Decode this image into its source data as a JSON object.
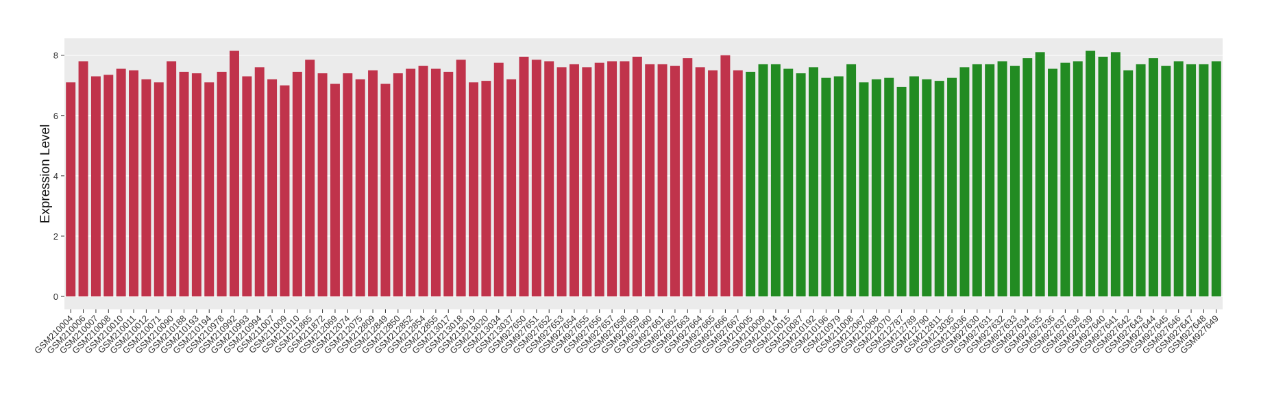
{
  "chart_data": {
    "type": "bar",
    "y_label": "Expression Level",
    "categories": [
      "GSM210004",
      "GSM210006",
      "GSM210007",
      "GSM210008",
      "GSM210010",
      "GSM210011",
      "GSM210012",
      "GSM210071",
      "GSM210090",
      "GSM210188",
      "GSM210193",
      "GSM210194",
      "GSM210978",
      "GSM210992",
      "GSM210993",
      "GSM210994",
      "GSM211007",
      "GSM211009",
      "GSM211010",
      "GSM211865",
      "GSM211872",
      "GSM212069",
      "GSM212074",
      "GSM212075",
      "GSM212809",
      "GSM212849",
      "GSM212850",
      "GSM212852",
      "GSM212854",
      "GSM212855",
      "GSM213017",
      "GSM213018",
      "GSM213019",
      "GSM213020",
      "GSM213034",
      "GSM213037",
      "GSM927650",
      "GSM927651",
      "GSM927652",
      "GSM927653",
      "GSM927654",
      "GSM927655",
      "GSM927656",
      "GSM927657",
      "GSM927658",
      "GSM927659",
      "GSM927660",
      "GSM927661",
      "GSM927662",
      "GSM927663",
      "GSM927664",
      "GSM927665",
      "GSM927666",
      "GSM927667",
      "GSM210005",
      "GSM210009",
      "GSM210014",
      "GSM210015",
      "GSM210087",
      "GSM210192",
      "GSM210196",
      "GSM210979",
      "GSM211008",
      "GSM212067",
      "GSM212068",
      "GSM212070",
      "GSM212787",
      "GSM212789",
      "GSM212790",
      "GSM212811",
      "GSM213035",
      "GSM213036",
      "GSM927630",
      "GSM927631",
      "GSM927632",
      "GSM927633",
      "GSM927634",
      "GSM927635",
      "GSM927636",
      "GSM927637",
      "GSM927638",
      "GSM927639",
      "GSM927640",
      "GSM927641",
      "GSM927642",
      "GSM927643",
      "GSM927644",
      "GSM927645",
      "GSM927646",
      "GSM927647",
      "GSM927648",
      "GSM927649"
    ],
    "values": [
      7.1,
      7.8,
      7.3,
      7.35,
      7.55,
      7.5,
      7.2,
      7.1,
      7.8,
      7.45,
      7.4,
      7.1,
      7.45,
      8.15,
      7.3,
      7.6,
      7.2,
      7.0,
      7.45,
      7.85,
      7.4,
      7.05,
      7.4,
      7.2,
      7.5,
      7.05,
      7.4,
      7.55,
      7.65,
      7.55,
      7.45,
      7.85,
      7.1,
      7.15,
      7.75,
      7.2,
      7.95,
      7.85,
      7.8,
      7.6,
      7.7,
      7.6,
      7.75,
      7.8,
      7.8,
      7.95,
      7.7,
      7.7,
      7.65,
      7.9,
      7.6,
      7.5,
      8.0,
      7.5,
      7.45,
      7.7,
      7.7,
      7.55,
      7.4,
      7.6,
      7.25,
      7.3,
      7.7,
      7.1,
      7.2,
      7.25,
      6.95,
      7.3,
      7.2,
      7.15,
      7.25,
      7.6,
      7.7,
      7.7,
      7.8,
      7.65,
      7.9,
      8.1,
      7.55,
      7.75,
      7.8,
      8.15,
      7.95,
      8.1,
      7.5,
      7.7,
      7.9,
      7.65,
      7.8,
      7.7,
      7.7,
      7.8
    ],
    "bar_colors": [
      "#c0334b",
      "#c0334b",
      "#c0334b",
      "#c0334b",
      "#c0334b",
      "#c0334b",
      "#c0334b",
      "#c0334b",
      "#c0334b",
      "#c0334b",
      "#c0334b",
      "#c0334b",
      "#c0334b",
      "#c0334b",
      "#c0334b",
      "#c0334b",
      "#c0334b",
      "#c0334b",
      "#c0334b",
      "#c0334b",
      "#c0334b",
      "#c0334b",
      "#c0334b",
      "#c0334b",
      "#c0334b",
      "#c0334b",
      "#c0334b",
      "#c0334b",
      "#c0334b",
      "#c0334b",
      "#c0334b",
      "#c0334b",
      "#c0334b",
      "#c0334b",
      "#c0334b",
      "#c0334b",
      "#c0334b",
      "#c0334b",
      "#c0334b",
      "#c0334b",
      "#c0334b",
      "#c0334b",
      "#c0334b",
      "#c0334b",
      "#c0334b",
      "#c0334b",
      "#c0334b",
      "#c0334b",
      "#c0334b",
      "#c0334b",
      "#c0334b",
      "#c0334b",
      "#c0334b",
      "#c0334b",
      "#228b22",
      "#228b22",
      "#228b22",
      "#228b22",
      "#228b22",
      "#228b22",
      "#228b22",
      "#228b22",
      "#228b22",
      "#228b22",
      "#228b22",
      "#228b22",
      "#228b22",
      "#228b22",
      "#228b22",
      "#228b22",
      "#228b22",
      "#228b22",
      "#228b22",
      "#228b22",
      "#228b22",
      "#228b22",
      "#228b22",
      "#228b22",
      "#228b22",
      "#228b22",
      "#228b22",
      "#228b22",
      "#228b22",
      "#228b22",
      "#228b22",
      "#228b22",
      "#228b22",
      "#228b22",
      "#228b22",
      "#228b22",
      "#228b22",
      "#228b22"
    ],
    "ylim": [
      -0.43,
      8.56
    ],
    "yticks": [
      0,
      2,
      4,
      6,
      8
    ],
    "grid": true
  }
}
